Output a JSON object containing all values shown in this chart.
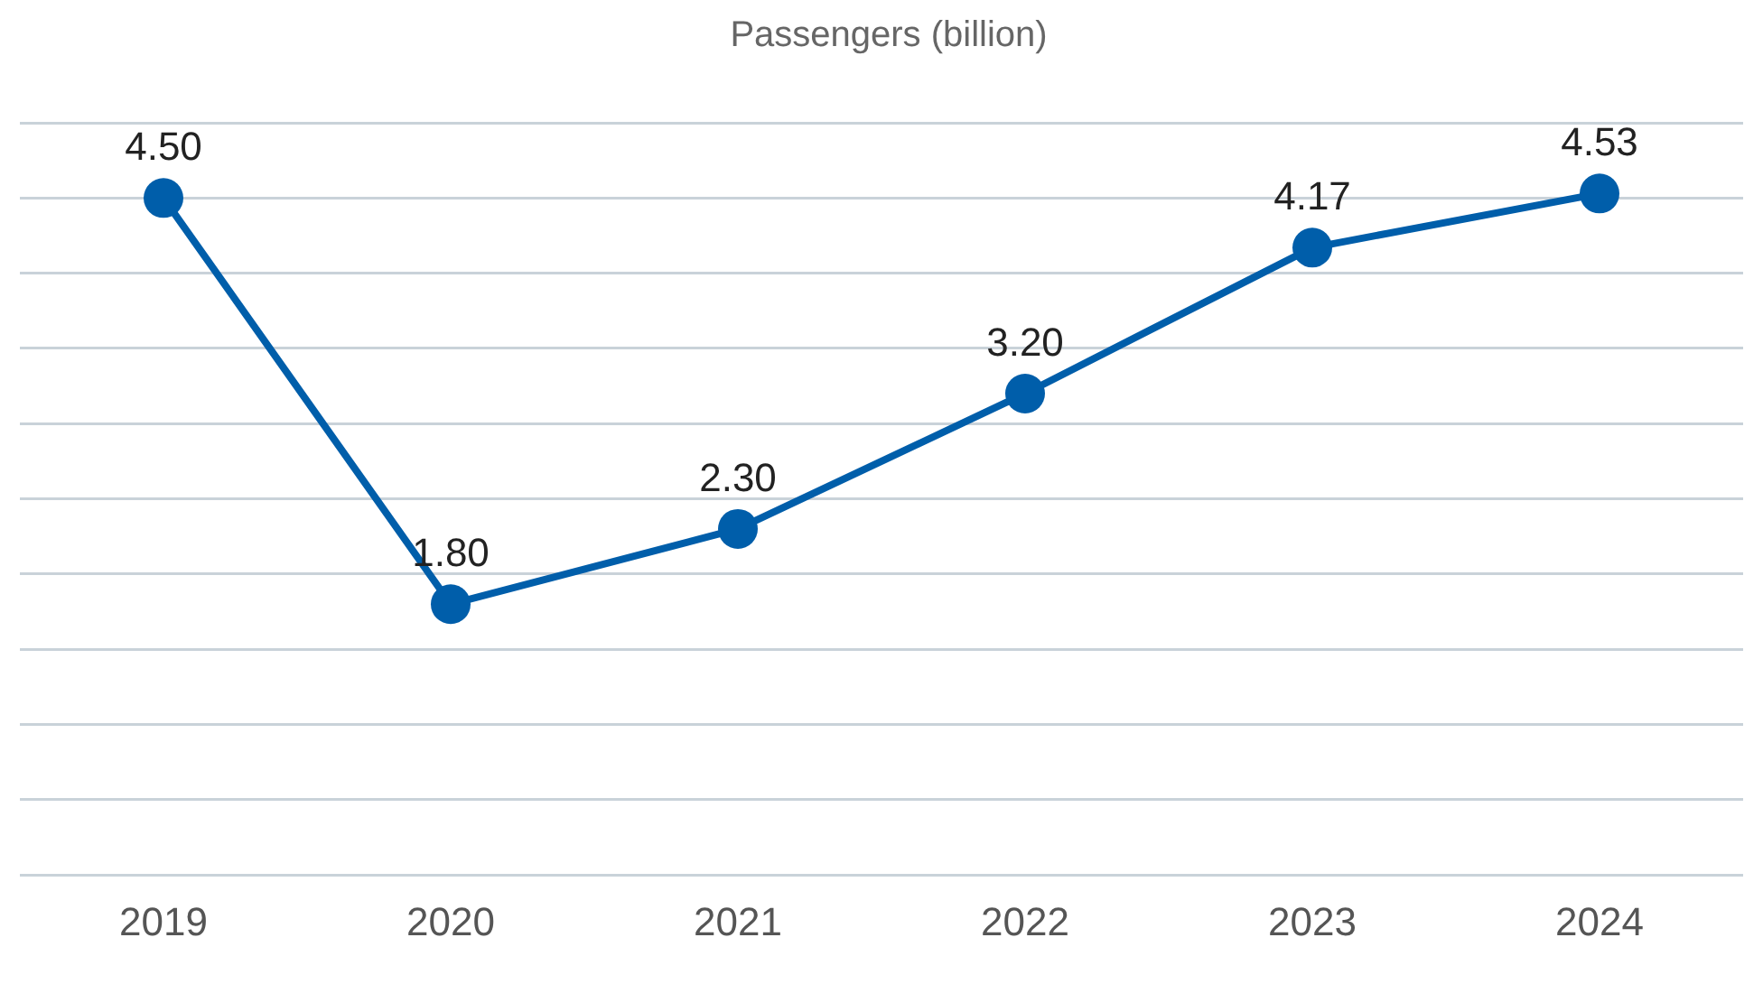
{
  "chart_data": {
    "type": "line",
    "title": "Passengers (billion)",
    "categories": [
      "2019",
      "2020",
      "2021",
      "2022",
      "2023",
      "2024"
    ],
    "series": [
      {
        "color": "#005eaa",
        "values": [
          4.5,
          1.8,
          2.3,
          3.2,
          4.17,
          4.53
        ],
        "value_labels": [
          "4.50",
          "1.80",
          "2.30",
          "3.20",
          "4.17",
          "4.53"
        ]
      }
    ],
    "ylim": [
      0,
      5
    ],
    "yticks": [
      {
        "value": 0,
        "label": null
      },
      {
        "value": 0.5,
        "label": null
      },
      {
        "value": 1,
        "label": null
      },
      {
        "value": 1.5,
        "label": null
      },
      {
        "value": 2,
        "label": null
      },
      {
        "value": 2.5,
        "label": null
      },
      {
        "value": 3,
        "label": null
      },
      {
        "value": 3.5,
        "label": null
      },
      {
        "value": 4,
        "label": null
      },
      {
        "value": 4.5,
        "label": null
      },
      {
        "value": 5,
        "label": null
      }
    ],
    "tick_labels": "x",
    "grid": "y",
    "legend": false,
    "marker": "circle",
    "line_style": "solid"
  }
}
